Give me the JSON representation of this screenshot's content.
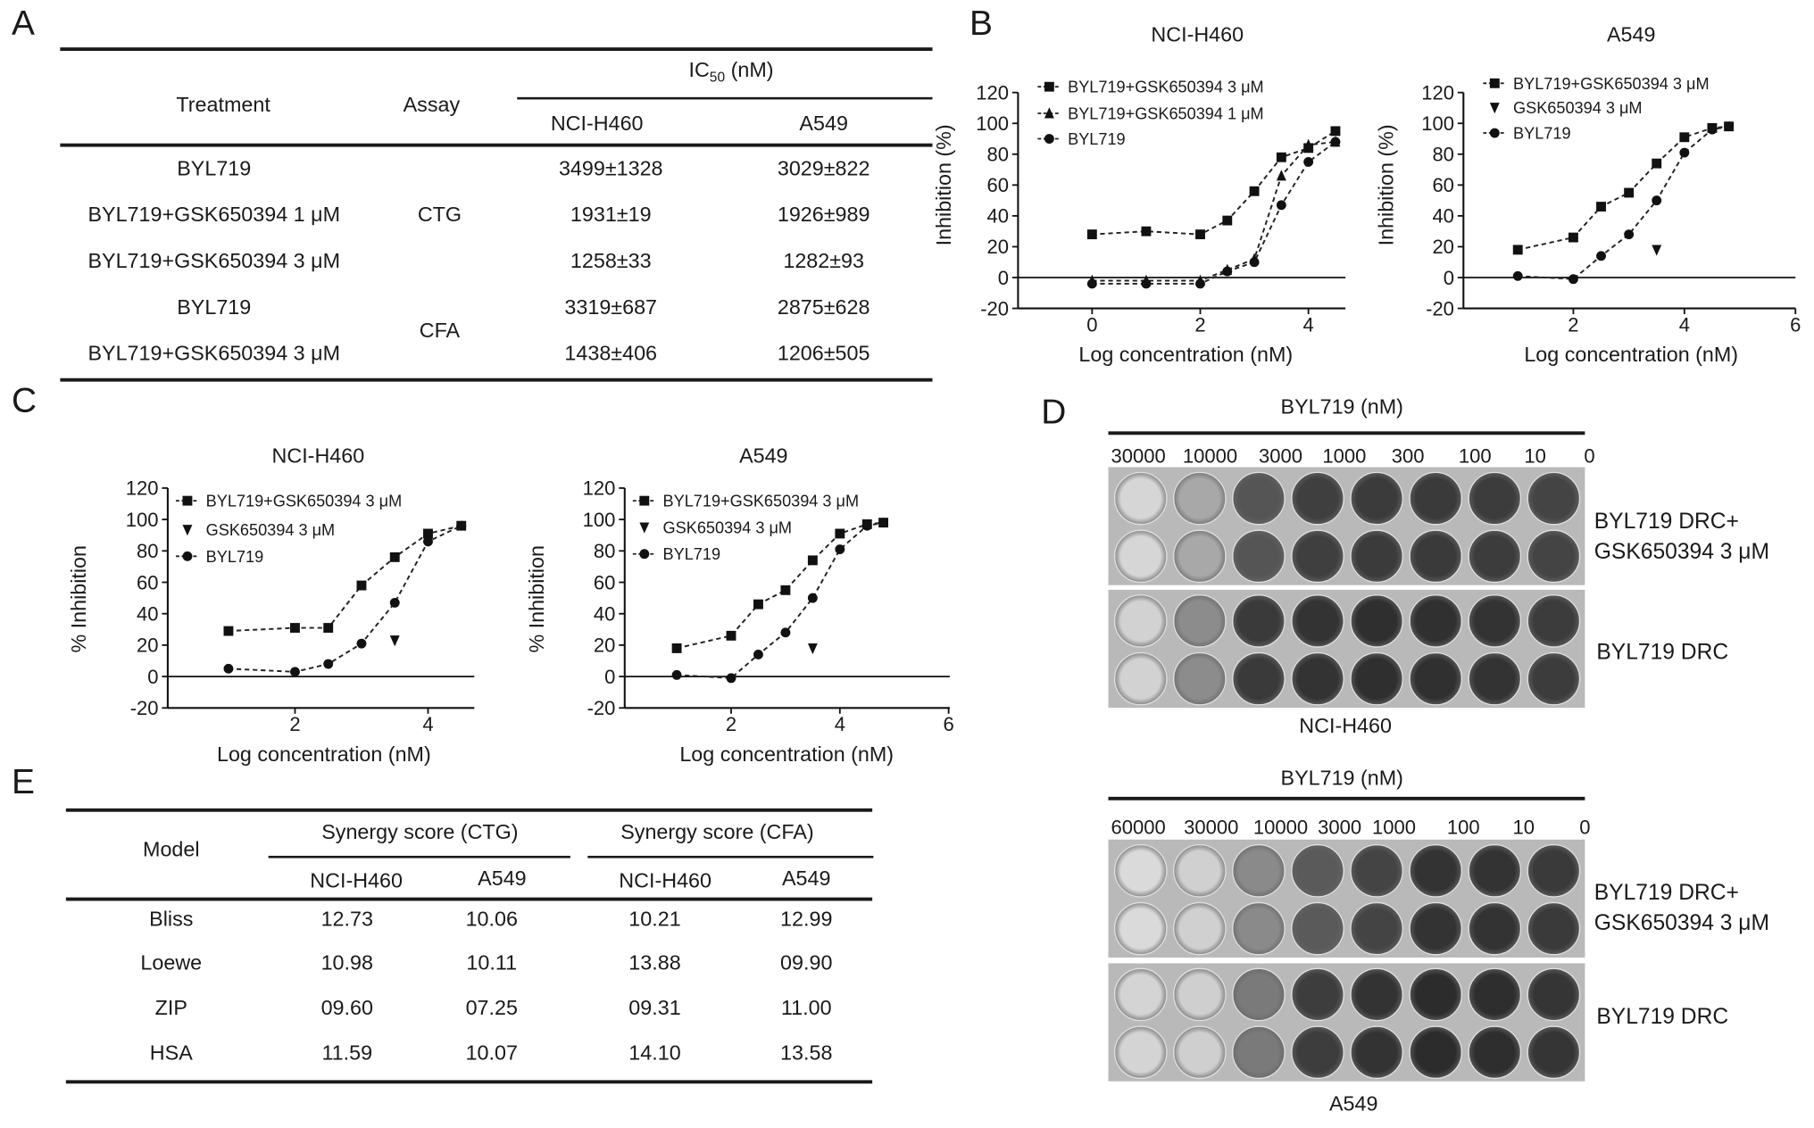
{
  "panels": {
    "a": "A",
    "b": "B",
    "c": "C",
    "d": "D",
    "e": "E"
  },
  "table_a": {
    "col_treatment": "Treatment",
    "col_assay": "Assay",
    "ic50_main": "IC",
    "ic50_sub": "50",
    "ic50_unit": " (nM)",
    "col_h460": "NCI-H460",
    "col_a549": "A549",
    "rows": [
      {
        "treatment": "BYL719",
        "h460": "3499±1328",
        "a549": "3029±822"
      },
      {
        "treatment": "BYL719+GSK650394 1 μM",
        "h460": "1931±19",
        "a549": "1926±989"
      },
      {
        "treatment": "BYL719+GSK650394 3 μM",
        "h460": "1258±33",
        "a549": "1282±93"
      },
      {
        "treatment": "BYL719",
        "h460": "3319±687",
        "a549": "2875±628"
      },
      {
        "treatment": "BYL719+GSK650394 3 μM",
        "h460": "1438±406",
        "a549": "1206±505"
      }
    ],
    "assay_ctg": "CTG",
    "assay_cfa": "CFA"
  },
  "chart_data": [
    {
      "panel": "B",
      "type": "line",
      "title": "NCI-H460",
      "xlabel": "Log concentration (nM)",
      "ylabel": "Inhibition (%)",
      "xlim": [
        -1.4,
        4.7
      ],
      "ylim": [
        -20,
        120
      ],
      "xticks": [
        0,
        2,
        4
      ],
      "yticks": [
        -20,
        0,
        20,
        40,
        60,
        80,
        100,
        120
      ],
      "legend": "top-left",
      "grid": false,
      "series": [
        {
          "name": "BYL719+GSK650394 3 μM",
          "marker": "square",
          "x": [
            0,
            1,
            2,
            2.5,
            3,
            3.5,
            4,
            4.5
          ],
          "y": [
            28,
            30,
            28,
            37,
            56,
            78,
            84,
            95
          ]
        },
        {
          "name": "BYL719+GSK650394 1 μM",
          "marker": "triangle",
          "x": [
            0,
            1,
            2,
            2.5,
            3,
            3.5,
            4,
            4.5
          ],
          "y": [
            -2,
            -2,
            -2,
            5,
            12,
            66,
            86,
            88
          ]
        },
        {
          "name": "BYL719",
          "marker": "circle",
          "x": [
            0,
            1,
            2,
            2.5,
            3,
            3.5,
            4,
            4.5
          ],
          "y": [
            -4,
            -4,
            -4,
            4,
            10,
            47,
            75,
            88
          ]
        }
      ]
    },
    {
      "panel": "B",
      "type": "line",
      "title": "A549",
      "xlabel": "Log concentration (nM)",
      "ylabel": "Inhibition (%)",
      "xlim": [
        0,
        6
      ],
      "ylim": [
        -20,
        120
      ],
      "xticks": [
        2,
        4,
        6
      ],
      "yticks": [
        -20,
        0,
        20,
        40,
        60,
        80,
        100,
        120
      ],
      "legend": "top-left",
      "grid": false,
      "series": [
        {
          "name": "BYL719+GSK650394 3 μM",
          "marker": "square",
          "x": [
            1,
            2,
            2.5,
            3,
            3.5,
            4,
            4.5,
            4.8
          ],
          "y": [
            18,
            26,
            46,
            55,
            74,
            91,
            97,
            98
          ]
        },
        {
          "name": "GSK650394 3 μM",
          "marker": "triangle-down",
          "x": [
            3.5
          ],
          "y": [
            18
          ]
        },
        {
          "name": "BYL719",
          "marker": "circle",
          "x": [
            1,
            2,
            2.5,
            3,
            3.5,
            4,
            4.5,
            4.8
          ],
          "y": [
            1,
            -1,
            14,
            28,
            50,
            81,
            96,
            98
          ]
        }
      ]
    },
    {
      "panel": "C",
      "type": "line",
      "title": "NCI-H460",
      "xlabel": "Log concentration (nM)",
      "ylabel": "% Inhibition",
      "xlim": [
        0.1,
        4.7
      ],
      "ylim": [
        -20,
        120
      ],
      "xticks": [
        2,
        4
      ],
      "yticks": [
        -20,
        0,
        20,
        40,
        60,
        80,
        100,
        120
      ],
      "legend": "top-left",
      "grid": false,
      "series": [
        {
          "name": "BYL719+GSK650394 3 μM",
          "marker": "square",
          "x": [
            1,
            2,
            2.5,
            3,
            3.5,
            4,
            4.5
          ],
          "y": [
            29,
            31,
            31,
            58,
            76,
            91,
            96
          ]
        },
        {
          "name": "GSK650394 3 μM",
          "marker": "triangle-down",
          "x": [
            3.5
          ],
          "y": [
            23
          ]
        },
        {
          "name": "BYL719",
          "marker": "circle",
          "x": [
            1,
            2,
            2.5,
            3,
            3.5,
            4,
            4.5
          ],
          "y": [
            5,
            3,
            8,
            21,
            47,
            86,
            96
          ]
        }
      ]
    },
    {
      "panel": "C",
      "type": "line",
      "title": "A549",
      "xlabel": "Log concentration (nM)",
      "ylabel": "% Inhibition",
      "xlim": [
        0,
        6
      ],
      "ylim": [
        -20,
        120
      ],
      "xticks": [
        2,
        4,
        6
      ],
      "yticks": [
        -20,
        0,
        20,
        40,
        60,
        80,
        100,
        120
      ],
      "legend": "top-left",
      "grid": false,
      "series": [
        {
          "name": "BYL719+GSK650394 3 μM",
          "marker": "square",
          "x": [
            1,
            2,
            2.5,
            3,
            3.5,
            4,
            4.5,
            4.8
          ],
          "y": [
            18,
            26,
            46,
            55,
            74,
            91,
            97,
            98
          ]
        },
        {
          "name": "GSK650394 3 μM",
          "marker": "triangle-down",
          "x": [
            3.5
          ],
          "y": [
            18
          ]
        },
        {
          "name": "BYL719",
          "marker": "circle",
          "x": [
            1,
            2,
            2.5,
            3,
            3.5,
            4,
            4.5,
            4.8
          ],
          "y": [
            1,
            -1,
            14,
            28,
            50,
            81,
            96,
            98
          ]
        }
      ]
    }
  ],
  "panel_d": {
    "top": {
      "header": "BYL719 (nM)",
      "concentrations": [
        "30000",
        "10000",
        "3000",
        "1000",
        "300",
        "100",
        "10",
        "0"
      ],
      "row_label_combo_1": "BYL719 DRC+",
      "row_label_combo_2": "GSK650394 3 μM",
      "row_label_single": "BYL719 DRC",
      "cell_line": "NCI-H460"
    },
    "bottom": {
      "header": "BYL719 (nM)",
      "concentrations": [
        "60000",
        "30000",
        "10000",
        "3000",
        "1000",
        "100",
        "10",
        "0"
      ],
      "row_label_combo_1": "BYL719 DRC+",
      "row_label_combo_2": "GSK650394 3 μM",
      "row_label_single": "BYL719 DRC",
      "cell_line": "A549"
    }
  },
  "table_e": {
    "col_model": "Model",
    "group_ctg": "Synergy score (CTG)",
    "group_cfa": "Synergy score (CFA)",
    "sub": [
      "NCI-H460",
      "A549",
      "NCI-H460",
      "A549"
    ],
    "rows": [
      {
        "model": "Bliss",
        "v": [
          "12.73",
          "10.06",
          "10.21",
          "12.99"
        ]
      },
      {
        "model": "Loewe",
        "v": [
          "10.98",
          "10.11",
          "13.88",
          "09.90"
        ]
      },
      {
        "model": "ZIP",
        "v": [
          "09.60",
          "07.25",
          "09.31",
          "11.00"
        ]
      },
      {
        "model": "HSA",
        "v": [
          "11.59",
          "10.07",
          "14.10",
          "13.58"
        ]
      }
    ]
  }
}
